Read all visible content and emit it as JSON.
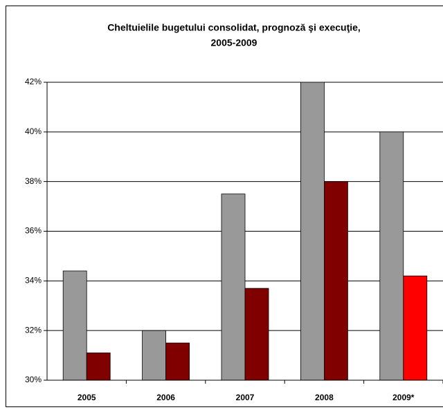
{
  "chart_data": {
    "type": "bar",
    "title": [
      "Cheltuielile bugetului consolidat, prognoză şi execuţie,",
      "2005-2009"
    ],
    "categories": [
      "2005",
      "2006",
      "2007",
      "2008",
      "2009*"
    ],
    "series": [
      {
        "color": "#999999",
        "values": [
          34.4,
          32.0,
          37.5,
          42.0,
          40.0
        ]
      },
      {
        "color": "#800000",
        "colors": [
          "#800000",
          "#800000",
          "#800000",
          "#800000",
          "#ff0000"
        ],
        "values": [
          31.1,
          31.5,
          33.7,
          38.0,
          34.2
        ]
      }
    ],
    "ylim": [
      30,
      42
    ],
    "yticks": [
      {
        "value": 30,
        "label": "30%"
      },
      {
        "value": 32,
        "label": "32%"
      },
      {
        "value": 34,
        "label": "34%"
      },
      {
        "value": 36,
        "label": "36%"
      },
      {
        "value": 38,
        "label": "38%"
      },
      {
        "value": 40,
        "label": "40%"
      },
      {
        "value": 42,
        "label": "42%"
      }
    ],
    "grid": true
  }
}
